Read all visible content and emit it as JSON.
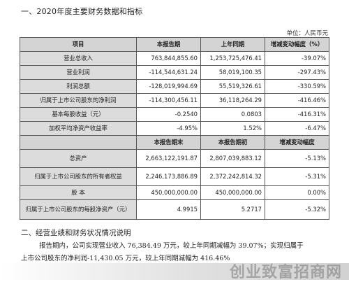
{
  "section1_title": "一、2020年度主要财务数据和指标",
  "unit_label": "单位：人民币元",
  "table": {
    "header1": [
      "项目",
      "本报告期",
      "上年同期",
      "增减变动幅度（%）"
    ],
    "rows1": [
      [
        "营业总收入",
        "763,844,855.60",
        "1,253,725,476.41",
        "-39.07%"
      ],
      [
        "营业利润",
        "-114,544,631.24",
        "58,019,100.35",
        "-297.43%"
      ],
      [
        "利润总额",
        "-128,019,994.69",
        "55,519,326.61",
        "-330.59%"
      ],
      [
        "归属于上市公司股东的净利润",
        "-114,300,456.11",
        "36,118,264.29",
        "-416.46%"
      ],
      [
        "基本每股收益（元）",
        "-0.2540",
        "0.0803",
        "-416.31%"
      ],
      [
        "加权平均净资产收益率",
        "-4.95%",
        "1.52%",
        "-6.47%"
      ]
    ],
    "header2": [
      "",
      "本报告期末",
      "本报告期初",
      "增减变动幅度"
    ],
    "rows2": [
      [
        "总资产",
        "2,663,122,191.87",
        "2,807,039,883.12",
        "-5.13%"
      ],
      [
        "归属于上市公司股东的所有者权益",
        "2,246,173,886.89",
        "2,372,242,814.32",
        "-5.31%"
      ],
      [
        "股  本",
        "450,000,000.00",
        "450,000,000.00",
        "0.00%"
      ],
      [
        "归属于上市公司股东的每股净资产（元）",
        "4.9915",
        "5.2717",
        "-5.32%"
      ]
    ]
  },
  "section2_title": "二、经营业绩和财务状况情况说明",
  "paragraph": {
    "line1": "报告期内，公司实现营业收入 76,384.49 万元，较上年同期减幅为 39.07%；实现归属于",
    "line2": "上市公司股东的净利润-11,430.05 万元，较上年同期减幅为 416.46%"
  },
  "watermark": "创业致富招商网"
}
